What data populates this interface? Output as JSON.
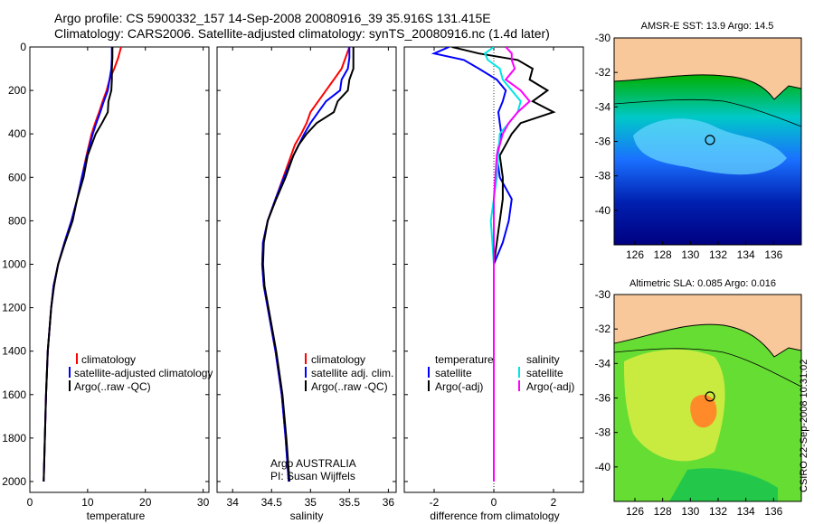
{
  "header": {
    "line1": "Argo profile: CS 5900332_157 14-Sep-2008 20080916_39 35.916S 131.415E",
    "line2": "Climatology: CARS2006. Satellite-adjusted climatology: synTS_20080916.nc (1.4d later)"
  },
  "side_label": "CSIRO 22-Sep-2008 10:31:02",
  "colors": {
    "climatology": "#ff0000",
    "satellite": "#0000ff",
    "argo": "#000000",
    "argo_adj_salinity": "#ff00ff",
    "satellite_salinity": "#00e5e5",
    "land": "#f9c89a"
  },
  "chart_data": [
    {
      "type": "line",
      "xlabel": "temperature",
      "xlim": [
        0,
        31
      ],
      "ylim": [
        2050,
        0
      ],
      "x_ticks": [
        0,
        10,
        20,
        30
      ],
      "y_ticks": [
        0,
        200,
        400,
        600,
        800,
        1000,
        1200,
        1400,
        1600,
        1800,
        2000
      ],
      "legend": [
        "climatology",
        "satellite-adjusted climatology",
        "Argo(..raw -QC)"
      ],
      "depth": [
        0,
        50,
        100,
        150,
        200,
        250,
        300,
        350,
        400,
        500,
        600,
        700,
        800,
        900,
        1000,
        1100,
        1200,
        1400,
        1600,
        1800,
        2000
      ],
      "series": [
        {
          "name": "climatology",
          "color": "#ff0000",
          "values": [
            15.8,
            15.3,
            14.6,
            13.8,
            13.3,
            12.6,
            12.0,
            11.3,
            10.7,
            9.8,
            9.0,
            8.2,
            7.2,
            6.0,
            4.9,
            4.1,
            3.7,
            3.1,
            2.8,
            2.6,
            2.4
          ]
        },
        {
          "name": "satellite-adjusted climatology",
          "color": "#0000ff",
          "values": [
            14.2,
            14.2,
            14.1,
            13.8,
            13.5,
            12.8,
            12.2,
            11.5,
            10.9,
            9.9,
            9.0,
            8.2,
            7.2,
            6.0,
            4.9,
            4.1,
            3.7,
            3.1,
            2.8,
            2.6,
            2.4
          ]
        },
        {
          "name": "Argo(..raw -QC)",
          "color": "#000000",
          "values": [
            14.3,
            14.3,
            14.2,
            14.2,
            14.1,
            13.6,
            13.5,
            12.5,
            11.4,
            10.0,
            9.3,
            8.2,
            7.4,
            6.1,
            4.9,
            4.2,
            3.7,
            3.1,
            2.8,
            2.6,
            2.4
          ]
        }
      ]
    },
    {
      "type": "line",
      "xlabel": "salinity",
      "xlim": [
        33.8,
        36.1
      ],
      "ylim": [
        2050,
        0
      ],
      "x_ticks": [
        34,
        34.5,
        35,
        35.5,
        36
      ],
      "y_ticks": [
        0,
        200,
        400,
        600,
        800,
        1000,
        1200,
        1400,
        1600,
        1800,
        2000
      ],
      "legend": [
        "climatology",
        "satellite adj. clim.",
        "Argo(..raw -QC)"
      ],
      "note": [
        "Argo AUSTRALIA",
        "PI: Susan Wijffels"
      ],
      "depth": [
        0,
        50,
        100,
        150,
        200,
        250,
        300,
        350,
        400,
        450,
        500,
        600,
        700,
        800,
        900,
        1000,
        1100,
        1200,
        1400,
        1600,
        1800,
        2000
      ],
      "series": [
        {
          "name": "climatology",
          "color": "#ff0000",
          "values": [
            35.5,
            35.45,
            35.4,
            35.3,
            35.2,
            35.1,
            35.0,
            34.95,
            34.88,
            34.8,
            34.75,
            34.65,
            34.55,
            34.45,
            34.39,
            34.38,
            34.4,
            34.45,
            34.55,
            34.63,
            34.68,
            34.72
          ]
        },
        {
          "name": "satellite adj. clim.",
          "color": "#0000ff",
          "values": [
            35.5,
            35.5,
            35.48,
            35.4,
            35.38,
            35.2,
            35.1,
            35.0,
            34.92,
            34.85,
            34.78,
            34.66,
            34.55,
            34.45,
            34.39,
            34.38,
            34.4,
            34.45,
            34.55,
            34.63,
            34.68,
            34.72
          ]
        },
        {
          "name": "Argo(..raw -QC)",
          "color": "#000000",
          "values": [
            35.55,
            35.55,
            35.55,
            35.5,
            35.48,
            35.35,
            35.3,
            35.08,
            34.95,
            34.85,
            34.78,
            34.68,
            34.56,
            34.45,
            34.4,
            34.39,
            34.41,
            34.46,
            34.56,
            34.64,
            34.69,
            34.73
          ]
        }
      ]
    },
    {
      "type": "line",
      "xlabel": "difference from climatology",
      "xlim": [
        -3,
        3
      ],
      "ylim": [
        2050,
        0
      ],
      "x_ticks": [
        -2,
        0,
        2
      ],
      "y_ticks": [
        0,
        200,
        400,
        600,
        800,
        1000,
        1200,
        1400,
        1600,
        1800,
        2000
      ],
      "legend_headers": [
        "temperature",
        "salinity"
      ],
      "legend": [
        "satellite",
        "Argo(-adj)",
        "satellite",
        "Argo(-adj)"
      ],
      "depth": [
        0,
        30,
        60,
        100,
        150,
        200,
        250,
        300,
        350,
        400,
        500,
        600,
        700,
        800,
        900,
        1000,
        1200,
        1400,
        1600,
        1800,
        2000
      ],
      "series": [
        {
          "name": "temperature satellite",
          "color": "#0000ff",
          "values": [
            -1.5,
            -2.0,
            -1.0,
            -0.5,
            0.1,
            0.4,
            0.3,
            0.15,
            0.2,
            0.25,
            0.1,
            0.2,
            0.6,
            0.5,
            0.3,
            0.0,
            0.0,
            0.0,
            0.0,
            0.0,
            0.0
          ]
        },
        {
          "name": "temperature Argo(-adj)",
          "color": "#000000",
          "values": [
            -1.4,
            -0.5,
            0.8,
            1.3,
            1.2,
            1.8,
            1.3,
            2.0,
            0.9,
            0.6,
            0.2,
            0.3,
            0.3,
            0.2,
            0.1,
            0.0,
            0.0,
            0.0,
            0.0,
            0.0,
            0.0
          ]
        },
        {
          "name": "salinity satellite",
          "color": "#00e5e5",
          "values": [
            0.0,
            -0.3,
            -0.2,
            0.2,
            0.3,
            0.6,
            0.9,
            0.8,
            0.5,
            0.2,
            0.15,
            0.1,
            0.0,
            -0.1,
            -0.05,
            0.0,
            0.0,
            0.0,
            0.0,
            0.0,
            0.0
          ]
        },
        {
          "name": "salinity Argo(-adj)",
          "color": "#ff00ff",
          "values": [
            0.4,
            0.6,
            0.6,
            0.7,
            0.4,
            0.9,
            1.2,
            0.8,
            0.5,
            0.3,
            0.1,
            0.05,
            0.0,
            0.0,
            0.0,
            0.0,
            0.0,
            0.0,
            0.0,
            0.0,
            0.0
          ]
        }
      ]
    },
    {
      "type": "heatmap",
      "title": "AMSR-E SST: 13.9 Argo: 14.5",
      "x_ticks": [
        126,
        128,
        130,
        132,
        134,
        136
      ],
      "y_ticks": [
        -30,
        -32,
        -34,
        -36,
        -38,
        -40
      ],
      "xlim": [
        124.5,
        138
      ],
      "ylim": [
        -42,
        -30
      ],
      "marker": [
        131.415,
        -35.916
      ]
    },
    {
      "type": "heatmap",
      "title": "Altimetric SLA: 0.085 Argo: 0.016",
      "x_ticks": [
        126,
        128,
        130,
        132,
        134,
        136
      ],
      "y_ticks": [
        -30,
        -32,
        -34,
        -36,
        -38,
        -40
      ],
      "xlim": [
        124.5,
        138
      ],
      "ylim": [
        -42,
        -30
      ],
      "marker": [
        131.415,
        -35.916
      ]
    }
  ]
}
